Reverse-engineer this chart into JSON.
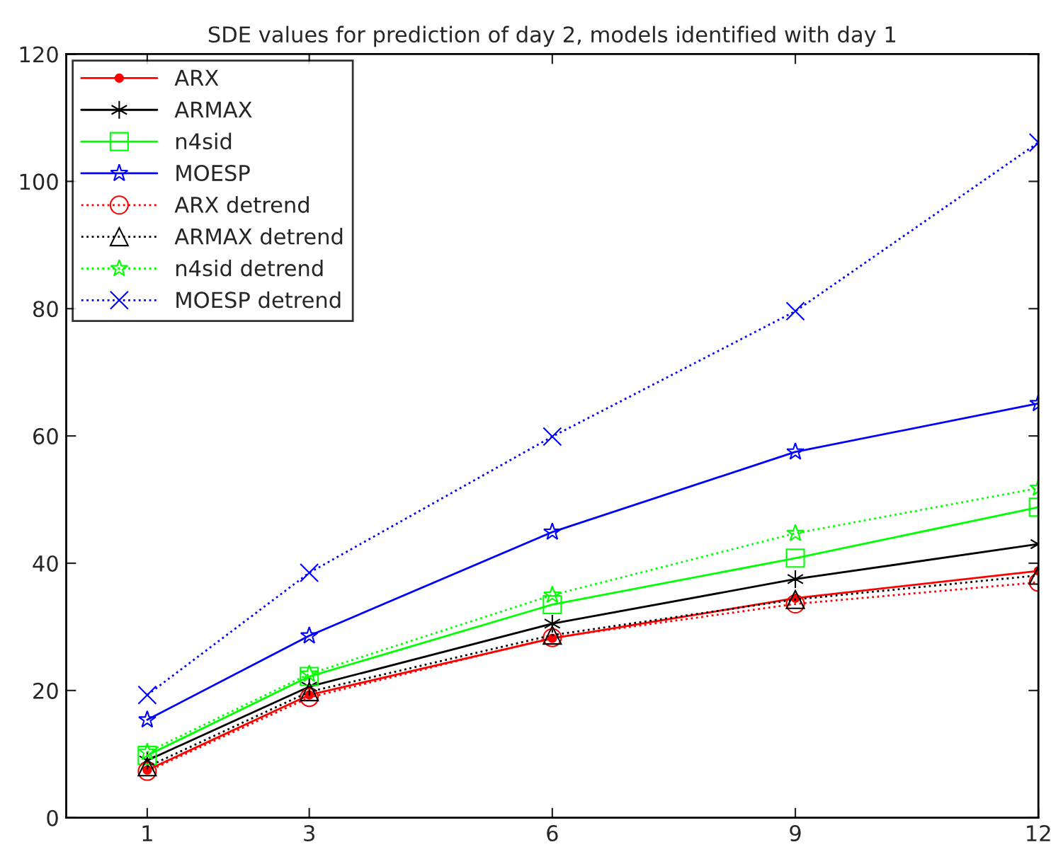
{
  "chart_data": {
    "type": "line",
    "title": "SDE values for prediction of day 2, models identified with day 1",
    "x": [
      1,
      3,
      6,
      9,
      12
    ],
    "xlim": [
      0,
      12
    ],
    "xticks": [
      1,
      3,
      6,
      9,
      12
    ],
    "ylim": [
      0,
      120
    ],
    "yticks": [
      0,
      20,
      40,
      60,
      80,
      100,
      120
    ],
    "grid": false,
    "legend": "top left",
    "series": [
      {
        "name": "ARX",
        "color": "#ff0000",
        "marker": "circle",
        "line_style": "solid",
        "values": [
          7.5,
          19.3,
          28.2,
          34.5,
          38.8
        ]
      },
      {
        "name": "ARMAX",
        "color": "#000000",
        "marker": "cross",
        "line_style": "solid",
        "values": [
          9.0,
          20.6,
          30.5,
          37.5,
          43.0
        ]
      },
      {
        "name": "n4sid",
        "color": "#00ff00",
        "marker": "square",
        "line_style": "solid",
        "values": [
          9.8,
          22.2,
          33.5,
          40.8,
          48.8
        ]
      },
      {
        "name": "MOESP",
        "color": "#0000ff",
        "marker": "star",
        "line_style": "solid",
        "values": [
          15.4,
          28.6,
          44.9,
          57.5,
          65.1
        ]
      },
      {
        "name": "ARX detrend",
        "color": "#ff0000",
        "marker": "circle",
        "line_style": "dotted",
        "values": [
          7.3,
          18.9,
          28.3,
          33.6,
          37.0
        ]
      },
      {
        "name": "ARMAX detrend",
        "color": "#000000",
        "marker": "triangle",
        "line_style": "dotted",
        "values": [
          8.0,
          19.8,
          28.7,
          34.3,
          38.1
        ]
      },
      {
        "name": "n4sid detrend",
        "color": "#00ff00",
        "marker": "star",
        "line_style": "dotted",
        "values": [
          10.3,
          22.6,
          35.0,
          44.7,
          51.8
        ]
      },
      {
        "name": "MOESP detrend",
        "color": "#0000ff",
        "marker": "cross",
        "line_style": "dotted",
        "values": [
          19.3,
          38.5,
          59.9,
          79.6,
          106.1
        ]
      }
    ]
  }
}
